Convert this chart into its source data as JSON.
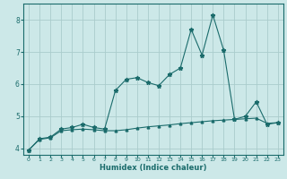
{
  "title": "",
  "xlabel": "Humidex (Indice chaleur)",
  "ylabel": "",
  "background_color": "#cce8e8",
  "grid_color": "#aacccc",
  "line_color": "#1a6b6b",
  "xlim": [
    -0.5,
    23.5
  ],
  "ylim": [
    3.8,
    8.5
  ],
  "yticks": [
    4,
    5,
    6,
    7,
    8
  ],
  "xticks": [
    0,
    1,
    2,
    3,
    4,
    5,
    6,
    7,
    8,
    9,
    10,
    11,
    12,
    13,
    14,
    15,
    16,
    17,
    18,
    19,
    20,
    21,
    22,
    23
  ],
  "series1_x": [
    0,
    1,
    2,
    3,
    4,
    5,
    6,
    7,
    8,
    9,
    10,
    11,
    12,
    13,
    14,
    15,
    16,
    17,
    18,
    19,
    20,
    21,
    22,
    23
  ],
  "series1_y": [
    3.95,
    4.3,
    4.35,
    4.6,
    4.65,
    4.75,
    4.65,
    4.6,
    5.8,
    6.15,
    6.2,
    6.05,
    5.95,
    6.3,
    6.5,
    7.7,
    6.9,
    8.15,
    7.05,
    4.9,
    5.0,
    5.45,
    4.75,
    4.8
  ],
  "series2_x": [
    0,
    1,
    2,
    3,
    4,
    5,
    6,
    7,
    8,
    9,
    10,
    11,
    12,
    13,
    14,
    15,
    16,
    17,
    18,
    19,
    20,
    21,
    22,
    23
  ],
  "series2_y": [
    3.95,
    4.28,
    4.33,
    4.55,
    4.58,
    4.6,
    4.58,
    4.55,
    4.55,
    4.58,
    4.63,
    4.67,
    4.7,
    4.73,
    4.77,
    4.8,
    4.83,
    4.86,
    4.88,
    4.9,
    4.92,
    4.94,
    4.78,
    4.8
  ]
}
